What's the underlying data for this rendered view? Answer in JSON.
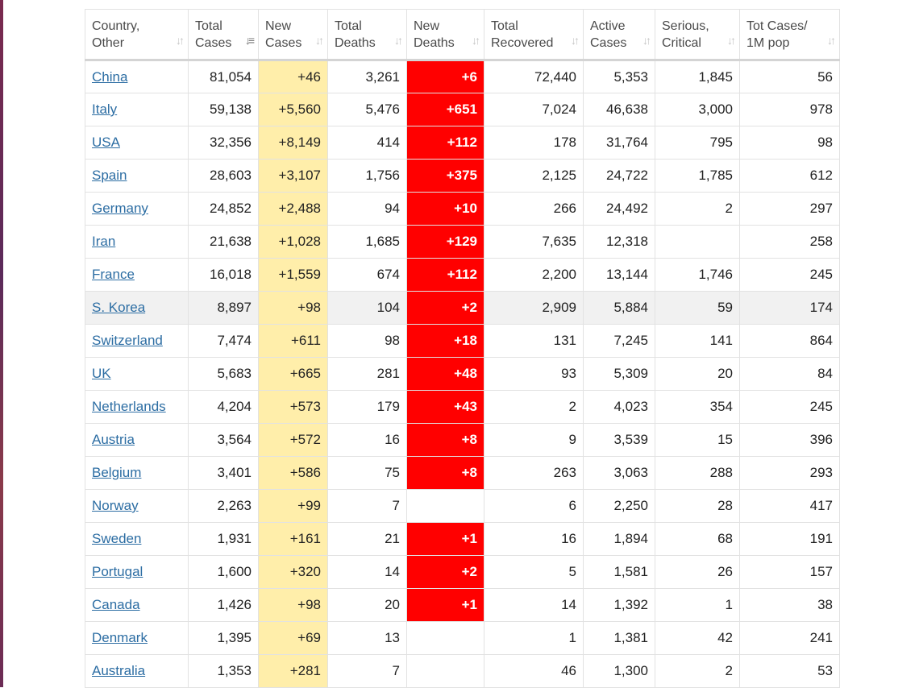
{
  "table": {
    "headers": [
      {
        "key": "country",
        "line1": "Country,",
        "line2": "Other",
        "sort_glyph": "↓↑",
        "active": false
      },
      {
        "key": "total_cases",
        "line1": "Total",
        "line2": "Cases",
        "sort_glyph": "↓≡",
        "active": true
      },
      {
        "key": "new_cases",
        "line1": "New",
        "line2": "Cases",
        "sort_glyph": "↓↑",
        "active": false
      },
      {
        "key": "total_deaths",
        "line1": "Total",
        "line2": "Deaths",
        "sort_glyph": "↓↑",
        "active": false
      },
      {
        "key": "new_deaths",
        "line1": "New",
        "line2": "Deaths",
        "sort_glyph": "↓↑",
        "active": false
      },
      {
        "key": "total_recovered",
        "line1": "Total",
        "line2": "Recovered",
        "sort_glyph": "↓↑",
        "active": false
      },
      {
        "key": "active_cases",
        "line1": "Active",
        "line2": "Cases",
        "sort_glyph": "↓↑",
        "active": false
      },
      {
        "key": "serious_critical",
        "line1": "Serious,",
        "line2": "Critical",
        "sort_glyph": "↓↑",
        "active": false
      },
      {
        "key": "tot_cases_1m",
        "line1": "Tot Cases/",
        "line2": "1M pop",
        "sort_glyph": "↓↑",
        "active": false
      }
    ],
    "rows": [
      {
        "country": "China",
        "total_cases": "81,054",
        "new_cases": "+46",
        "total_deaths": "3,261",
        "new_deaths": "+6",
        "total_recovered": "72,440",
        "active_cases": "5,353",
        "serious_critical": "1,845",
        "tot_cases_1m": "56"
      },
      {
        "country": "Italy",
        "total_cases": "59,138",
        "new_cases": "+5,560",
        "total_deaths": "5,476",
        "new_deaths": "+651",
        "total_recovered": "7,024",
        "active_cases": "46,638",
        "serious_critical": "3,000",
        "tot_cases_1m": "978"
      },
      {
        "country": "USA",
        "total_cases": "32,356",
        "new_cases": "+8,149",
        "total_deaths": "414",
        "new_deaths": "+112",
        "total_recovered": "178",
        "active_cases": "31,764",
        "serious_critical": "795",
        "tot_cases_1m": "98"
      },
      {
        "country": "Spain",
        "total_cases": "28,603",
        "new_cases": "+3,107",
        "total_deaths": "1,756",
        "new_deaths": "+375",
        "total_recovered": "2,125",
        "active_cases": "24,722",
        "serious_critical": "1,785",
        "tot_cases_1m": "612"
      },
      {
        "country": "Germany",
        "total_cases": "24,852",
        "new_cases": "+2,488",
        "total_deaths": "94",
        "new_deaths": "+10",
        "total_recovered": "266",
        "active_cases": "24,492",
        "serious_critical": "2",
        "tot_cases_1m": "297"
      },
      {
        "country": "Iran",
        "total_cases": "21,638",
        "new_cases": "+1,028",
        "total_deaths": "1,685",
        "new_deaths": "+129",
        "total_recovered": "7,635",
        "active_cases": "12,318",
        "serious_critical": "",
        "tot_cases_1m": "258"
      },
      {
        "country": "France",
        "total_cases": "16,018",
        "new_cases": "+1,559",
        "total_deaths": "674",
        "new_deaths": "+112",
        "total_recovered": "2,200",
        "active_cases": "13,144",
        "serious_critical": "1,746",
        "tot_cases_1m": "245"
      },
      {
        "country": "S. Korea",
        "total_cases": "8,897",
        "new_cases": "+98",
        "total_deaths": "104",
        "new_deaths": "+2",
        "total_recovered": "2,909",
        "active_cases": "5,884",
        "serious_critical": "59",
        "tot_cases_1m": "174",
        "highlight": true
      },
      {
        "country": "Switzerland",
        "total_cases": "7,474",
        "new_cases": "+611",
        "total_deaths": "98",
        "new_deaths": "+18",
        "total_recovered": "131",
        "active_cases": "7,245",
        "serious_critical": "141",
        "tot_cases_1m": "864"
      },
      {
        "country": "UK",
        "total_cases": "5,683",
        "new_cases": "+665",
        "total_deaths": "281",
        "new_deaths": "+48",
        "total_recovered": "93",
        "active_cases": "5,309",
        "serious_critical": "20",
        "tot_cases_1m": "84"
      },
      {
        "country": "Netherlands",
        "total_cases": "4,204",
        "new_cases": "+573",
        "total_deaths": "179",
        "new_deaths": "+43",
        "total_recovered": "2",
        "active_cases": "4,023",
        "serious_critical": "354",
        "tot_cases_1m": "245"
      },
      {
        "country": "Austria",
        "total_cases": "3,564",
        "new_cases": "+572",
        "total_deaths": "16",
        "new_deaths": "+8",
        "total_recovered": "9",
        "active_cases": "3,539",
        "serious_critical": "15",
        "tot_cases_1m": "396"
      },
      {
        "country": "Belgium",
        "total_cases": "3,401",
        "new_cases": "+586",
        "total_deaths": "75",
        "new_deaths": "+8",
        "total_recovered": "263",
        "active_cases": "3,063",
        "serious_critical": "288",
        "tot_cases_1m": "293"
      },
      {
        "country": "Norway",
        "total_cases": "2,263",
        "new_cases": "+99",
        "total_deaths": "7",
        "new_deaths": "",
        "total_recovered": "6",
        "active_cases": "2,250",
        "serious_critical": "28",
        "tot_cases_1m": "417"
      },
      {
        "country": "Sweden",
        "total_cases": "1,931",
        "new_cases": "+161",
        "total_deaths": "21",
        "new_deaths": "+1",
        "total_recovered": "16",
        "active_cases": "1,894",
        "serious_critical": "68",
        "tot_cases_1m": "191"
      },
      {
        "country": "Portugal",
        "total_cases": "1,600",
        "new_cases": "+320",
        "total_deaths": "14",
        "new_deaths": "+2",
        "total_recovered": "5",
        "active_cases": "1,581",
        "serious_critical": "26",
        "tot_cases_1m": "157"
      },
      {
        "country": "Canada",
        "total_cases": "1,426",
        "new_cases": "+98",
        "total_deaths": "20",
        "new_deaths": "+1",
        "total_recovered": "14",
        "active_cases": "1,392",
        "serious_critical": "1",
        "tot_cases_1m": "38"
      },
      {
        "country": "Denmark",
        "total_cases": "1,395",
        "new_cases": "+69",
        "total_deaths": "13",
        "new_deaths": "",
        "total_recovered": "1",
        "active_cases": "1,381",
        "serious_critical": "42",
        "tot_cases_1m": "241"
      },
      {
        "country": "Australia",
        "total_cases": "1,353",
        "new_cases": "+281",
        "total_deaths": "7",
        "new_deaths": "",
        "total_recovered": "46",
        "active_cases": "1,300",
        "serious_critical": "2",
        "tot_cases_1m": "53"
      }
    ]
  },
  "colors": {
    "new_cases_bg": "#ffeeaa",
    "new_deaths_bg": "#ff0000",
    "link": "#2c6da3",
    "highlight_row": "#f1f1f1"
  }
}
